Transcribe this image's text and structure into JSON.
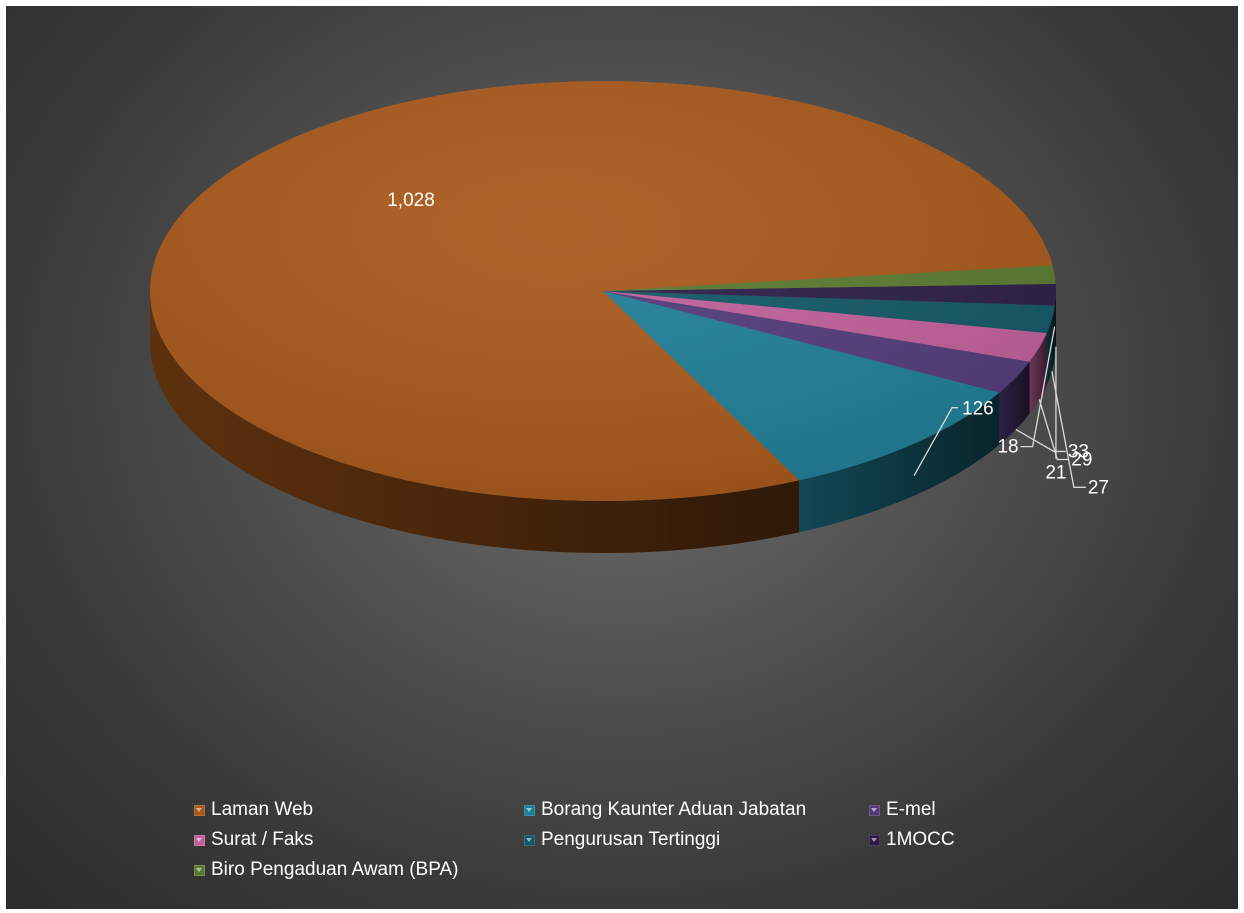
{
  "chart_data": {
    "type": "pie",
    "title": "",
    "categories": [
      "Laman Web",
      "Borang Kaunter Aduan Jabatan",
      "E-mel",
      "Surat / Faks",
      "Pengurusan Tertinggi",
      "1MOCC",
      "Biro Pengaduan Awam (BPA)"
    ],
    "values": [
      1028,
      126,
      33,
      29,
      27,
      21,
      18
    ],
    "value_labels": [
      "1,028",
      "126",
      "33",
      "29",
      "27",
      "21",
      "18"
    ],
    "colors": [
      "#A8581A",
      "#1F7F97",
      "#533B7A",
      "#C15F9C",
      "#125766",
      "#2C1D47",
      "#5A7A2F"
    ],
    "legend_position": "bottom",
    "style": "3D pie"
  }
}
